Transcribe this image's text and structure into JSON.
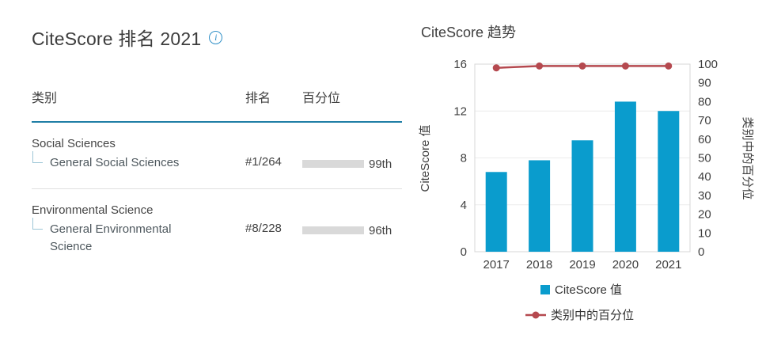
{
  "left_panel": {
    "title": "CiteScore 排名 2021",
    "info_icon_glyph": "i",
    "columns": {
      "category": "类别",
      "rank": "排名",
      "percentile": "百分位"
    },
    "rows": [
      {
        "category": "Social Sciences",
        "subcategory": "General Social Sciences",
        "rank": "#1/264",
        "percentile_label": "99th",
        "percentile_value": 99
      },
      {
        "category": "Environmental Science",
        "subcategory": "General Environmental Science",
        "rank": "#8/228",
        "percentile_label": "96th",
        "percentile_value": 96
      }
    ]
  },
  "chart_data": {
    "type": "bar",
    "title": "CiteScore 趋势",
    "categories": [
      "2017",
      "2018",
      "2019",
      "2020",
      "2021"
    ],
    "series": [
      {
        "name": "CiteScore 值",
        "type": "bar",
        "axis": "left",
        "values": [
          6.8,
          7.8,
          9.5,
          12.8,
          12.0
        ],
        "color": "#0a9ccd"
      },
      {
        "name": "类别中的百分位",
        "type": "line",
        "axis": "right",
        "values": [
          98,
          99,
          99,
          99,
          99
        ],
        "color": "#b5494f"
      }
    ],
    "left_axis": {
      "label": "CiteScore 值",
      "range": [
        0,
        16
      ],
      "ticks": [
        0,
        4,
        8,
        12,
        16
      ]
    },
    "right_axis": {
      "label": "类别中的百分位",
      "range": [
        0,
        100
      ],
      "ticks": [
        0,
        10,
        20,
        30,
        40,
        50,
        60,
        70,
        80,
        90,
        100
      ]
    },
    "grid": true,
    "legend_position": "bottom"
  },
  "colors": {
    "bar_blue": "#0a9ccd",
    "line_red": "#b5494f",
    "accent_teal": "#1f7ea5",
    "percentile_bar_teal": "#136a8d",
    "info_blue": "#2f8fc7"
  }
}
